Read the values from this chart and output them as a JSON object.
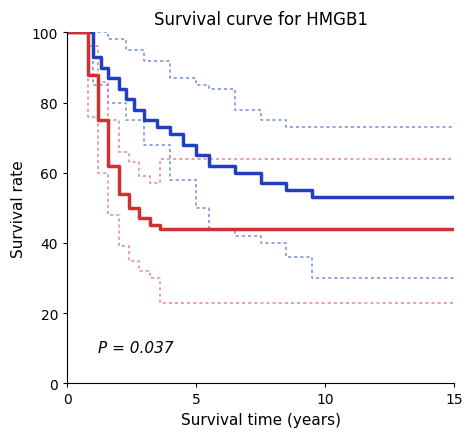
{
  "title": "Survival curve for HMGB1",
  "xlabel": "Survival time (years)",
  "ylabel": "Survival rate",
  "xlim": [
    0,
    15
  ],
  "ylim": [
    0,
    100
  ],
  "xticks": [
    0,
    5,
    10,
    15
  ],
  "yticks": [
    0,
    20,
    40,
    60,
    80,
    100
  ],
  "p_value_text": "P = 0.037",
  "p_value_x": 1.2,
  "p_value_y": 8,
  "blue_color": "#2040c0",
  "red_color": "#d03030",
  "blue_ci_color": "#6080d8",
  "red_ci_color": "#e07888",
  "blue_km": {
    "x": [
      0,
      1,
      1,
      1.3,
      1.3,
      1.6,
      1.6,
      2.0,
      2.0,
      2.3,
      2.3,
      2.6,
      2.6,
      3.0,
      3.0,
      3.5,
      3.5,
      4.0,
      4.0,
      4.5,
      4.5,
      5.0,
      5.0,
      5.5,
      5.5,
      6.5,
      6.5,
      7.5,
      7.5,
      8.5,
      8.5,
      9.5,
      9.5,
      15
    ],
    "y": [
      100,
      100,
      93,
      93,
      90,
      90,
      87,
      87,
      84,
      84,
      81,
      81,
      78,
      78,
      75,
      75,
      73,
      73,
      71,
      71,
      68,
      68,
      65,
      65,
      62,
      62,
      60,
      60,
      57,
      57,
      55,
      55,
      53,
      53
    ]
  },
  "blue_ci_upper": {
    "x": [
      0,
      1,
      1,
      1.6,
      1.6,
      2.3,
      2.3,
      3.0,
      3.0,
      4.0,
      4.0,
      5.0,
      5.0,
      5.5,
      5.5,
      6.5,
      6.5,
      7.5,
      7.5,
      8.5,
      8.5,
      9.5,
      9.5,
      15
    ],
    "y": [
      100,
      100,
      100,
      100,
      98,
      98,
      95,
      95,
      92,
      92,
      87,
      87,
      85,
      85,
      84,
      84,
      78,
      78,
      75,
      75,
      73,
      73,
      73,
      73
    ]
  },
  "blue_ci_lower": {
    "x": [
      0,
      1,
      1,
      1.6,
      1.6,
      2.3,
      2.3,
      3.0,
      3.0,
      4.0,
      4.0,
      5.0,
      5.0,
      5.5,
      5.5,
      6.5,
      6.5,
      7.5,
      7.5,
      8.5,
      8.5,
      9.5,
      9.5,
      15
    ],
    "y": [
      100,
      100,
      85,
      85,
      80,
      80,
      75,
      75,
      68,
      68,
      58,
      58,
      50,
      50,
      44,
      44,
      42,
      42,
      40,
      40,
      36,
      36,
      30,
      30
    ]
  },
  "red_km": {
    "x": [
      0,
      0.8,
      0.8,
      1.2,
      1.2,
      1.6,
      1.6,
      2.0,
      2.0,
      2.4,
      2.4,
      2.8,
      2.8,
      3.2,
      3.2,
      3.6,
      3.6,
      15
    ],
    "y": [
      100,
      100,
      88,
      88,
      75,
      75,
      62,
      62,
      54,
      54,
      50,
      50,
      47,
      47,
      45,
      45,
      44,
      44
    ]
  },
  "red_ci_upper": {
    "x": [
      0,
      0.8,
      0.8,
      1.2,
      1.2,
      1.6,
      1.6,
      2.0,
      2.0,
      2.4,
      2.4,
      2.8,
      2.8,
      3.2,
      3.2,
      3.6,
      3.6,
      5.0,
      5.0,
      15
    ],
    "y": [
      100,
      100,
      96,
      96,
      86,
      86,
      75,
      75,
      66,
      66,
      63,
      63,
      59,
      59,
      57,
      57,
      64,
      64,
      64,
      64
    ]
  },
  "red_ci_lower": {
    "x": [
      0,
      0.8,
      0.8,
      1.2,
      1.2,
      1.6,
      1.6,
      2.0,
      2.0,
      2.4,
      2.4,
      2.8,
      2.8,
      3.2,
      3.2,
      3.6,
      3.6,
      5.0,
      5.0,
      15
    ],
    "y": [
      100,
      100,
      76,
      76,
      60,
      60,
      48,
      48,
      39,
      39,
      35,
      35,
      32,
      32,
      30,
      30,
      23,
      23,
      23,
      23
    ]
  }
}
